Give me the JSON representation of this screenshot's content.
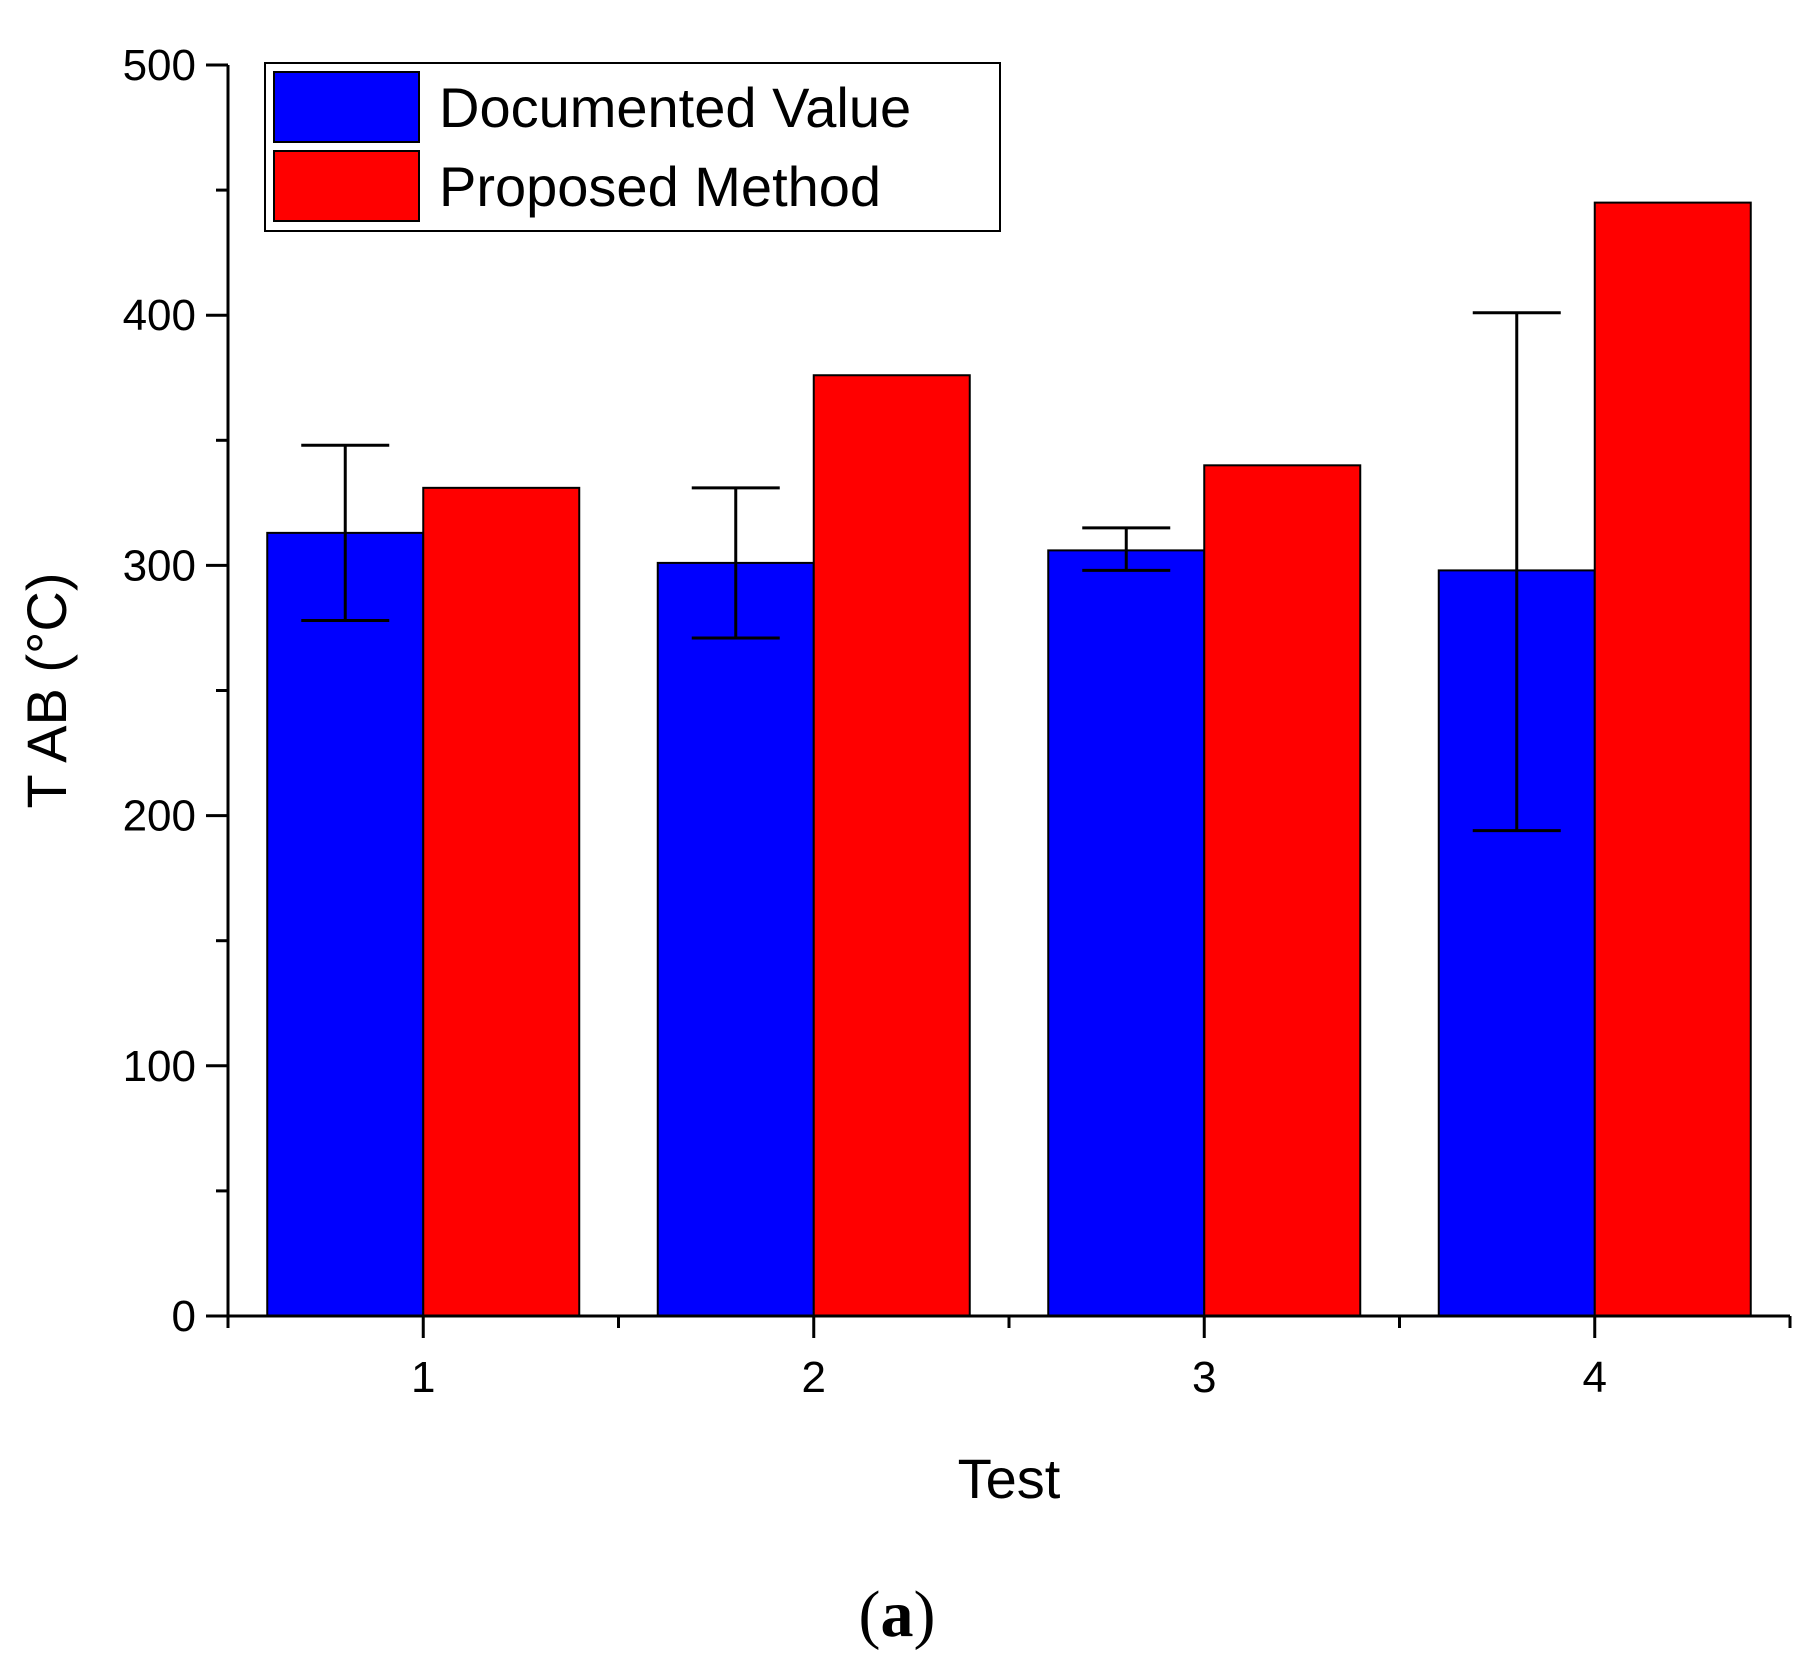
{
  "chart_data": {
    "type": "bar",
    "title": "",
    "xlabel": "Test",
    "ylabel": "T AB (°C)",
    "categories": [
      "1",
      "2",
      "3",
      "4"
    ],
    "ylim": [
      0,
      500
    ],
    "yticks": [
      "0",
      "100",
      "200",
      "300",
      "400",
      "500"
    ],
    "minor_ytick_step": 50,
    "grid": false,
    "legend_position": "top-left",
    "series": [
      {
        "name": "Documented Value",
        "color": "#0000ff",
        "values": [
          313,
          301,
          306,
          298
        ],
        "error_low": [
          278,
          271,
          298,
          194
        ],
        "error_high": [
          348,
          331,
          315,
          401
        ]
      },
      {
        "name": "Proposed Method",
        "color": "#ff0000",
        "values": [
          331,
          376,
          340,
          445
        ]
      }
    ]
  },
  "caption": {
    "open": "(",
    "letter": "a",
    "close": ")"
  }
}
